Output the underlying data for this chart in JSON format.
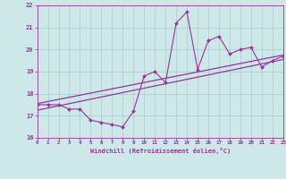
{
  "x_values": [
    0,
    1,
    2,
    3,
    4,
    5,
    6,
    7,
    8,
    9,
    10,
    11,
    12,
    13,
    14,
    15,
    16,
    17,
    18,
    19,
    20,
    21,
    22,
    23
  ],
  "y_data": [
    17.5,
    17.5,
    17.5,
    17.3,
    17.3,
    16.8,
    16.7,
    16.6,
    16.5,
    17.2,
    18.8,
    19.0,
    18.5,
    21.2,
    21.7,
    19.1,
    20.4,
    20.6,
    19.8,
    20.0,
    20.1,
    19.2,
    19.5,
    19.7
  ],
  "regression_line1_y": [
    17.55,
    19.75
  ],
  "regression_line2_y": [
    17.25,
    19.55
  ],
  "x_min": 0,
  "x_max": 23,
  "y_min": 16,
  "y_max": 22,
  "y_ticks": [
    16,
    17,
    18,
    19,
    20,
    21,
    22
  ],
  "x_ticks": [
    0,
    1,
    2,
    3,
    4,
    5,
    6,
    7,
    8,
    9,
    10,
    11,
    12,
    13,
    14,
    15,
    16,
    17,
    18,
    19,
    20,
    21,
    22,
    23
  ],
  "line_color": "#993399",
  "bg_color": "#cce8e8",
  "grid_color": "#aacccc",
  "xlabel": "Windchill (Refroidissement éolien,°C)"
}
